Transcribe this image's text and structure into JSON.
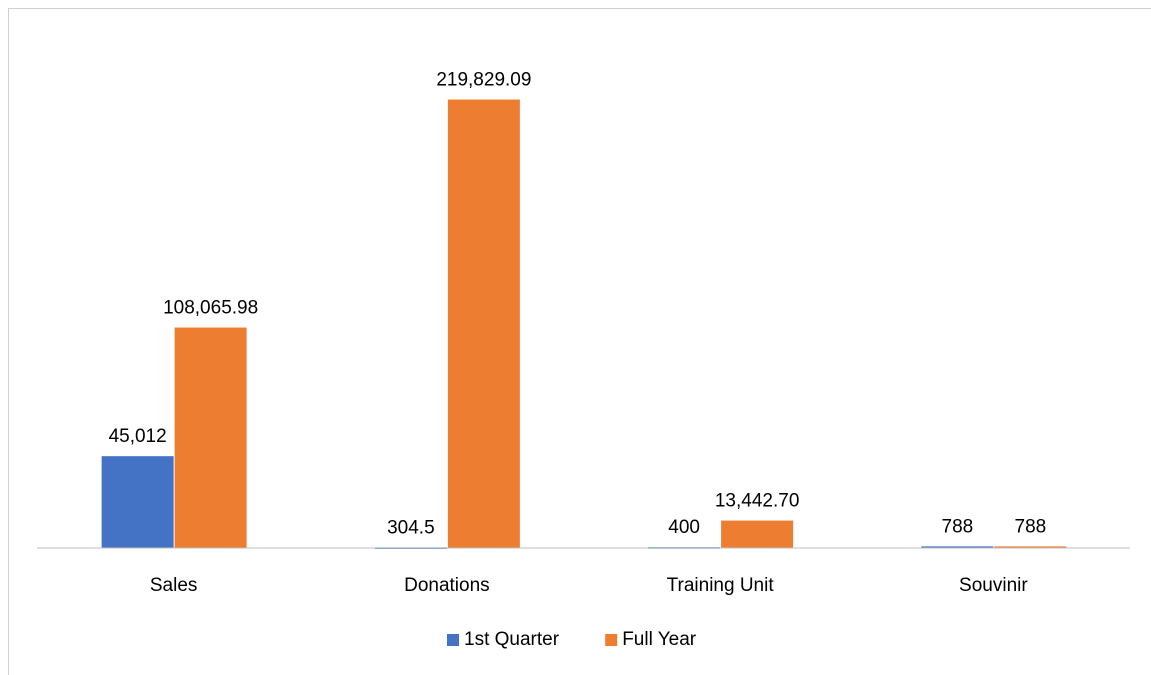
{
  "chart_data": {
    "type": "bar",
    "categories": [
      "Sales",
      "Donations",
      "Training Unit",
      "Souvinir"
    ],
    "series": [
      {
        "name": "1st Quarter",
        "color": "#4472c4",
        "values": [
          45012,
          304.5,
          400,
          788
        ],
        "value_labels": [
          "45,012",
          "304.5",
          "400",
          "788"
        ]
      },
      {
        "name": "Full Year",
        "color": "#ed7d31",
        "values": [
          108065.98,
          219829.09,
          13442.7,
          788
        ],
        "value_labels": [
          "108,065.98",
          "219,829.09",
          "13,442.70",
          "788"
        ]
      }
    ],
    "ylim": [
      0,
      250000
    ],
    "legend": "bottom",
    "grid": false
  }
}
